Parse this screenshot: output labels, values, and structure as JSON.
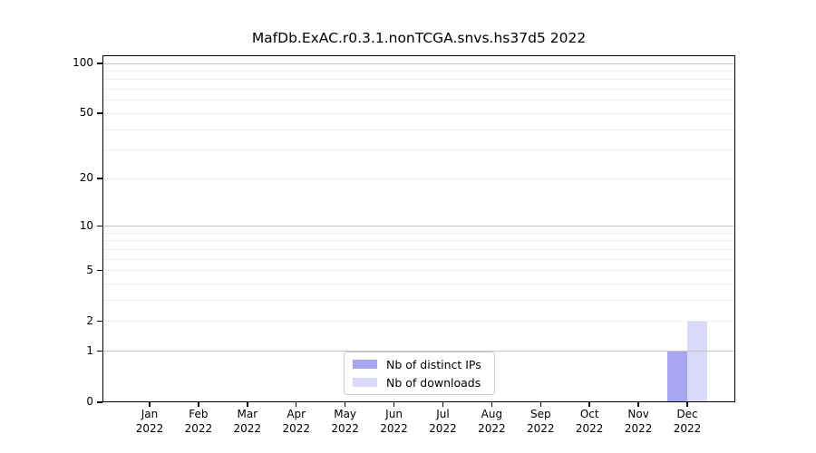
{
  "chart_data": {
    "type": "bar",
    "title": "MafDb.ExAC.r0.3.1.nonTCGA.snvs.hs37d5 2022",
    "x_months": [
      "Jan",
      "Feb",
      "Mar",
      "Apr",
      "May",
      "Jun",
      "Jul",
      "Aug",
      "Sep",
      "Oct",
      "Nov",
      "Dec"
    ],
    "x_year": "2022",
    "xlabel": "",
    "ylabel": "",
    "yscale": "log1p",
    "ylim": [
      0,
      100
    ],
    "ytick_values": [
      0,
      1,
      2,
      5,
      10,
      20,
      50,
      100
    ],
    "ytick_labels": [
      "0",
      "1",
      "2",
      "5",
      "10",
      "20",
      "50",
      "100"
    ],
    "major_gridline_values": [
      1,
      10,
      100
    ],
    "minor_gridline_values": [
      2,
      3,
      4,
      5,
      6,
      7,
      8,
      9,
      20,
      30,
      40,
      50,
      60,
      70,
      80,
      90
    ],
    "grid": "horizontal-only",
    "legend_position": "bottom-center-inside",
    "series": [
      {
        "name": "Nb of distinct IPs",
        "color": "#a6a6f2",
        "values": [
          0,
          0,
          0,
          0,
          0,
          0,
          0,
          0,
          0,
          0,
          0,
          1
        ]
      },
      {
        "name": "Nb of downloads",
        "color": "#d9d9f9",
        "values": [
          0,
          0,
          0,
          0,
          0,
          0,
          0,
          0,
          0,
          0,
          0,
          2
        ]
      }
    ],
    "colors": {
      "axis": "#000000",
      "major_grid": "#c6c6c6",
      "minor_grid": "#ececec",
      "legend_border": "#cccccc",
      "background": "#ffffff"
    }
  }
}
